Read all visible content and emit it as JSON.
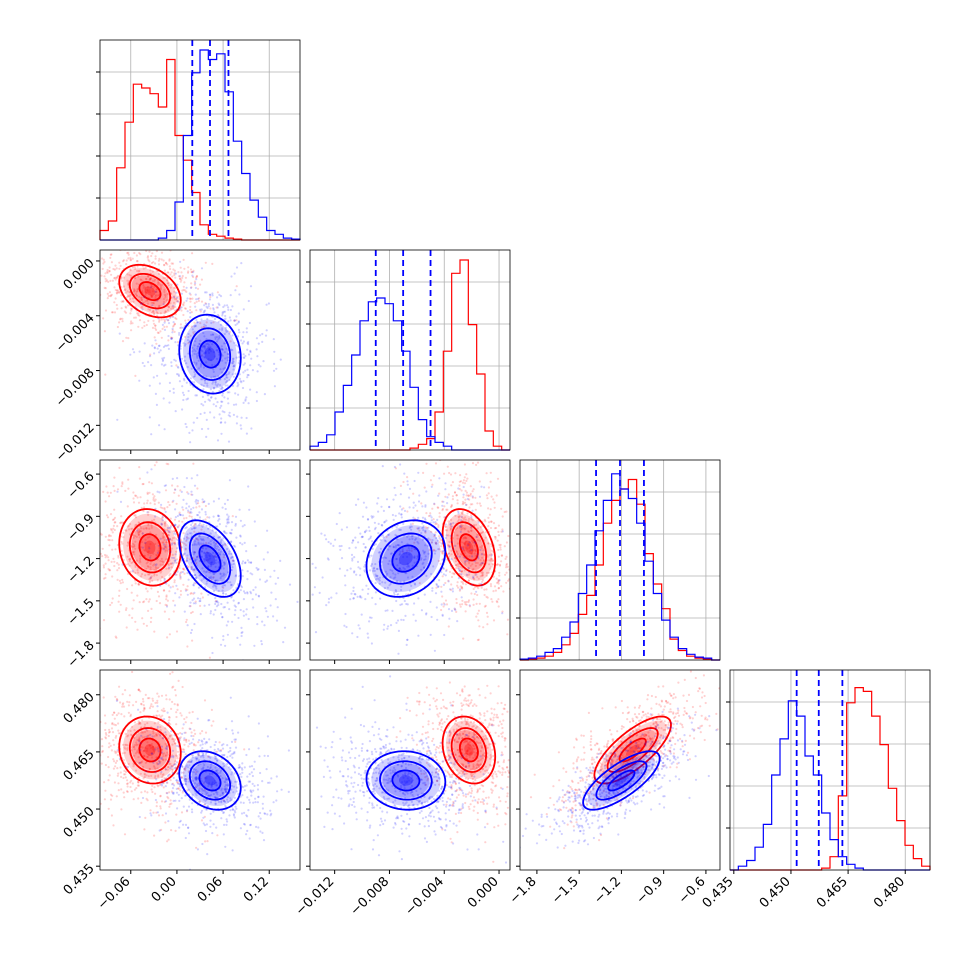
{
  "chart_data": {
    "type": "corner",
    "colors": {
      "red_series": "#ff0000",
      "blue_series": "#0000ff",
      "grid": "#b0b0b0",
      "axes": "#000000"
    },
    "quantile_lines": {
      "color": "#0000ff",
      "style": "dashed"
    },
    "params": [
      {
        "range": [
          -0.1,
          0.16
        ],
        "ticks": [
          {
            "v": -0.06,
            "label": "−0.06"
          },
          {
            "v": 0.0,
            "label": "0.00"
          },
          {
            "v": 0.06,
            "label": "0.06"
          },
          {
            "v": 0.12,
            "label": "0.12"
          }
        ],
        "quantiles": [
          0.02,
          0.043,
          0.067
        ]
      },
      {
        "range": [
          -0.0138,
          0.0008
        ],
        "ticks": [
          {
            "v": -0.012,
            "label": "−0.012"
          },
          {
            "v": -0.008,
            "label": "−0.008"
          },
          {
            "v": -0.004,
            "label": "−0.004"
          },
          {
            "v": 0.0,
            "label": "0.000"
          }
        ],
        "quantiles": [
          -0.009,
          -0.007,
          -0.005
        ]
      },
      {
        "range": [
          -1.92,
          -0.5
        ],
        "ticks": [
          {
            "v": -1.8,
            "label": "−1.8"
          },
          {
            "v": -1.5,
            "label": "−1.5"
          },
          {
            "v": -1.2,
            "label": "−1.2"
          },
          {
            "v": -0.9,
            "label": "−0.9"
          },
          {
            "v": -0.6,
            "label": "−0.6"
          }
        ],
        "quantiles": [
          -1.38,
          -1.21,
          -1.04
        ]
      },
      {
        "range": [
          0.434,
          0.4865
        ],
        "ticks": [
          {
            "v": 0.435,
            "label": "0.435"
          },
          {
            "v": 0.45,
            "label": "0.450"
          },
          {
            "v": 0.465,
            "label": "0.465"
          },
          {
            "v": 0.48,
            "label": "0.480"
          }
        ],
        "quantiles": [
          0.4515,
          0.4573,
          0.4635
        ]
      }
    ],
    "histograms": [
      {
        "red": [
          0.05,
          0.1,
          0.38,
          0.62,
          0.82,
          0.8,
          0.77,
          0.7,
          0.95,
          0.55,
          0.42,
          0.25,
          0.08,
          0.03,
          0.02,
          0.01,
          0.005,
          0,
          0,
          0,
          0,
          0,
          0,
          0
        ],
        "blue": [
          0,
          0,
          0,
          0,
          0,
          0,
          0,
          0.01,
          0.05,
          0.2,
          0.55,
          0.88,
          1.0,
          0.95,
          0.98,
          0.78,
          0.52,
          0.35,
          0.21,
          0.12,
          0.05,
          0.03,
          0.01,
          0.005
        ]
      },
      {
        "red": [
          0,
          0,
          0,
          0,
          0,
          0,
          0,
          0,
          0,
          0,
          0,
          0,
          0.01,
          0.03,
          0.06,
          0.2,
          0.52,
          0.93,
          1.0,
          0.66,
          0.4,
          0.1,
          0.02,
          0
        ],
        "blue": [
          0.02,
          0.04,
          0.08,
          0.2,
          0.34,
          0.5,
          0.68,
          0.78,
          0.8,
          0.77,
          0.68,
          0.52,
          0.33,
          0.16,
          0.07,
          0.04,
          0.02,
          0,
          0,
          0,
          0,
          0,
          0,
          0
        ]
      },
      {
        "red": [
          0,
          0.005,
          0.01,
          0.02,
          0.04,
          0.08,
          0.14,
          0.24,
          0.34,
          0.5,
          0.72,
          0.84,
          0.9,
          0.95,
          0.82,
          0.56,
          0.4,
          0.27,
          0.11,
          0.05,
          0.02,
          0.01,
          0.005,
          0
        ],
        "blue": [
          0.005,
          0.01,
          0.02,
          0.04,
          0.06,
          0.12,
          0.2,
          0.35,
          0.5,
          0.68,
          0.84,
          0.98,
          0.9,
          0.85,
          0.72,
          0.52,
          0.35,
          0.21,
          0.12,
          0.06,
          0.03,
          0.015,
          0.01,
          0
        ]
      },
      {
        "red": [
          0,
          0,
          0,
          0,
          0,
          0,
          0,
          0,
          0,
          0,
          0,
          0.01,
          0.07,
          0.39,
          0.88,
          0.96,
          0.94,
          0.81,
          0.66,
          0.43,
          0.26,
          0.13,
          0.06,
          0.02
        ],
        "blue": [
          0,
          0.02,
          0.05,
          0.12,
          0.24,
          0.5,
          0.69,
          0.89,
          0.81,
          0.6,
          0.5,
          0.3,
          0.16,
          0.07,
          0.03,
          0.01,
          0,
          0,
          0,
          0,
          0,
          0,
          0,
          0
        ]
      }
    ],
    "populations": {
      "red": {
        "mean": [
          -0.035,
          -0.0022,
          -1.12,
          0.4655
        ],
        "sd": [
          0.025,
          0.0012,
          0.17,
          0.0055
        ]
      },
      "blue": {
        "mean": [
          0.043,
          -0.0068,
          -1.2,
          0.4575
        ],
        "sd": [
          0.025,
          0.0018,
          0.17,
          0.0048
        ]
      }
    },
    "pair_correlations": {
      "red": {
        "1-0": -0.35,
        "2-0": -0.1,
        "3-0": -0.1,
        "2-1": -0.35,
        "3-1": -0.2,
        "3-2": 0.75
      },
      "blue": {
        "1-0": -0.1,
        "2-0": -0.45,
        "3-0": -0.25,
        "2-1": 0.2,
        "3-1": -0.05,
        "3-2": 0.75
      }
    }
  }
}
